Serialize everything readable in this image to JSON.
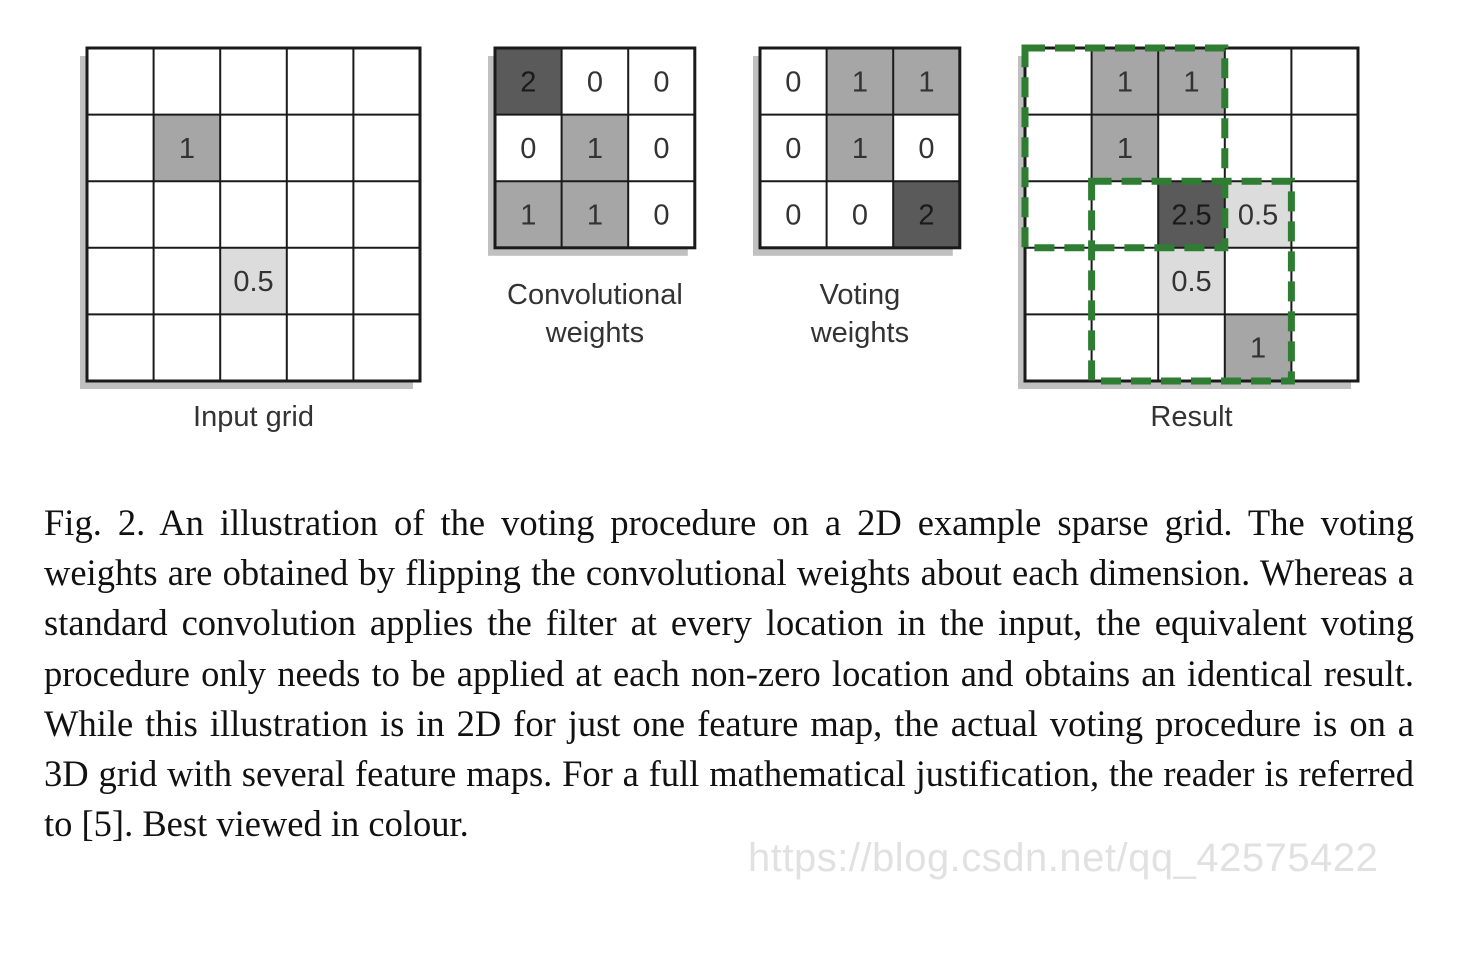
{
  "figure": {
    "colors": {
      "empty": "#ffffff",
      "light": "#dcdcdc",
      "medium": "#a6a6a6",
      "dark": "#5a5a5a",
      "grid_line": "#1a1a1a",
      "dashed_box": "#2e7d32",
      "shadow": "#8c8c8c"
    },
    "panels": [
      {
        "id": "input-grid",
        "label": "Input grid",
        "rows": 5,
        "cols": 5,
        "cells": [
          {
            "r": 1,
            "c": 1,
            "text": "1",
            "shade": "medium"
          },
          {
            "r": 3,
            "c": 2,
            "text": "0.5",
            "shade": "light"
          }
        ]
      },
      {
        "id": "convolutional-weights",
        "label": "Convolutional weights",
        "label_lines": [
          "Convolutional",
          "weights"
        ],
        "rows": 3,
        "cols": 3,
        "cells": [
          {
            "r": 0,
            "c": 0,
            "text": "2",
            "shade": "dark"
          },
          {
            "r": 0,
            "c": 1,
            "text": "0",
            "shade": "empty"
          },
          {
            "r": 0,
            "c": 2,
            "text": "0",
            "shade": "empty"
          },
          {
            "r": 1,
            "c": 0,
            "text": "0",
            "shade": "empty"
          },
          {
            "r": 1,
            "c": 1,
            "text": "1",
            "shade": "medium"
          },
          {
            "r": 1,
            "c": 2,
            "text": "0",
            "shade": "empty"
          },
          {
            "r": 2,
            "c": 0,
            "text": "1",
            "shade": "medium"
          },
          {
            "r": 2,
            "c": 1,
            "text": "1",
            "shade": "medium"
          },
          {
            "r": 2,
            "c": 2,
            "text": "0",
            "shade": "empty"
          }
        ]
      },
      {
        "id": "voting-weights",
        "label": "Voting weights",
        "label_lines": [
          "Voting",
          "weights"
        ],
        "rows": 3,
        "cols": 3,
        "cells": [
          {
            "r": 0,
            "c": 0,
            "text": "0",
            "shade": "empty"
          },
          {
            "r": 0,
            "c": 1,
            "text": "1",
            "shade": "medium"
          },
          {
            "r": 0,
            "c": 2,
            "text": "1",
            "shade": "medium"
          },
          {
            "r": 1,
            "c": 0,
            "text": "0",
            "shade": "empty"
          },
          {
            "r": 1,
            "c": 1,
            "text": "1",
            "shade": "medium"
          },
          {
            "r": 1,
            "c": 2,
            "text": "0",
            "shade": "empty"
          },
          {
            "r": 2,
            "c": 0,
            "text": "0",
            "shade": "empty"
          },
          {
            "r": 2,
            "c": 1,
            "text": "0",
            "shade": "empty"
          },
          {
            "r": 2,
            "c": 2,
            "text": "2",
            "shade": "dark"
          }
        ]
      },
      {
        "id": "result",
        "label": "Result",
        "rows": 5,
        "cols": 5,
        "cells": [
          {
            "r": 0,
            "c": 1,
            "text": "1",
            "shade": "medium"
          },
          {
            "r": 0,
            "c": 2,
            "text": "1",
            "shade": "medium"
          },
          {
            "r": 1,
            "c": 1,
            "text": "1",
            "shade": "medium"
          },
          {
            "r": 2,
            "c": 2,
            "text": "2.5",
            "shade": "dark"
          },
          {
            "r": 2,
            "c": 3,
            "text": "0.5",
            "shade": "light"
          },
          {
            "r": 3,
            "c": 2,
            "text": "0.5",
            "shade": "light"
          },
          {
            "r": 4,
            "c": 3,
            "text": "1",
            "shade": "medium"
          }
        ],
        "voting_windows": [
          {
            "row": 0,
            "col": 0,
            "size": 3
          },
          {
            "row": 2,
            "col": 1,
            "size": 3
          }
        ]
      }
    ]
  },
  "caption": {
    "label": "Fig. 2.",
    "text": "An illustration of the voting procedure on a 2D example sparse grid. The voting weights are obtained by flipping the convolutional weights about each dimension. Whereas a standard convolution applies the filter at every location in the input, the equivalent voting procedure only needs to be applied at each non-zero location and obtains an identical result. While this illustration is in 2D for just one feature map, the actual voting procedure is on a 3D grid with several feature maps. For a full mathematical justification, the reader is referred to [5]. Best viewed in colour."
  },
  "watermark": "https://blog.csdn.net/qq_42575422"
}
